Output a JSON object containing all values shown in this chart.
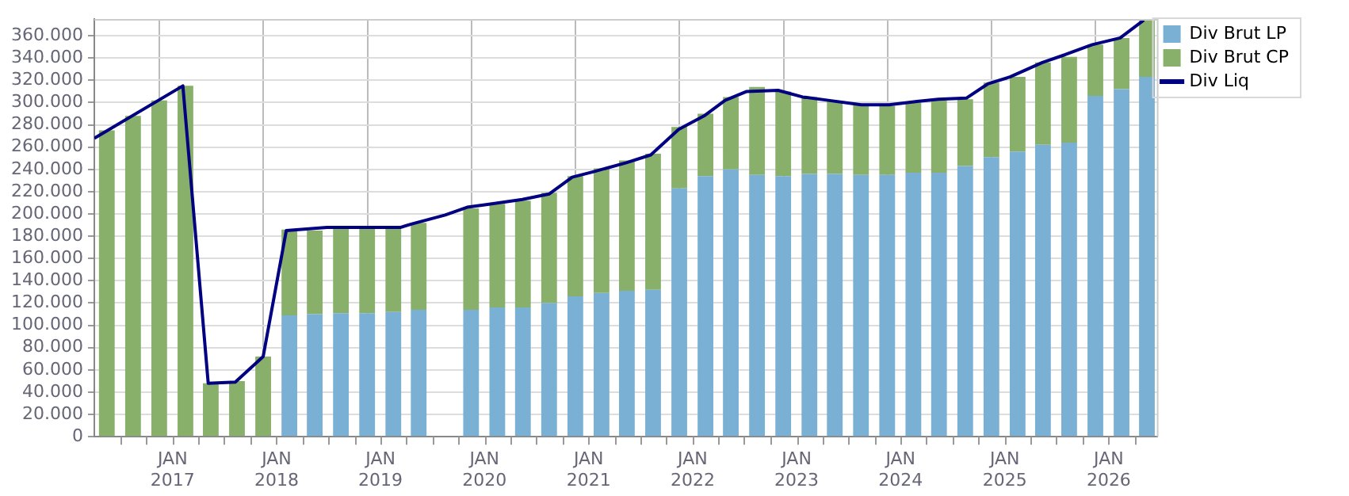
{
  "chart_data": {
    "type": "bar",
    "stacked": true,
    "grid": true,
    "legend": "right",
    "x": [
      "2016-05-15",
      "2016-08-15",
      "2016-11-15",
      "2017-02-15",
      "2017-05-15",
      "2017-08-15",
      "2017-11-15",
      "2018-02-15",
      "2018-05-15",
      "2018-08-15",
      "2018-11-15",
      "2019-02-15",
      "2019-05-15",
      "2019-08-15",
      "2019-11-15",
      "2020-02-15",
      "2020-05-15",
      "2020-08-15",
      "2020-11-15",
      "2021-02-15",
      "2021-05-15",
      "2021-08-15",
      "2021-11-15",
      "2022-02-15",
      "2022-05-15",
      "2022-08-15",
      "2022-11-15",
      "2023-02-15",
      "2023-05-15",
      "2023-08-15",
      "2023-11-15",
      "2024-02-15",
      "2024-05-15",
      "2024-08-15",
      "2024-11-15",
      "2025-02-15",
      "2025-05-15",
      "2025-08-15",
      "2025-11-15",
      "2026-02-15",
      "2026-05-15"
    ],
    "series": [
      {
        "name": "Div Brut LP",
        "color": "#7ab0d3",
        "values": [
          null,
          null,
          null,
          null,
          null,
          null,
          null,
          109000,
          110000,
          111000,
          111000,
          112000,
          114000,
          null,
          114000,
          116000,
          116000,
          120000,
          126000,
          129000,
          131000,
          132000,
          223000,
          234000,
          240000,
          235000,
          234000,
          236000,
          236000,
          235000,
          235000,
          237000,
          237000,
          243000,
          251000,
          256000,
          262000,
          264000,
          306000,
          312000,
          323000
        ]
      },
      {
        "name": "Div Brut CP",
        "color": "#88b06b",
        "values": [
          275000,
          288000,
          302000,
          315000,
          48000,
          50000,
          72000,
          77000,
          75000,
          76000,
          76000,
          75000,
          78000,
          null,
          91000,
          93000,
          96000,
          99000,
          108000,
          112000,
          117000,
          122000,
          55000,
          56000,
          65000,
          79000,
          76000,
          69000,
          65000,
          63000,
          62000,
          63000,
          65000,
          60000,
          67000,
          67000,
          74000,
          77000,
          46000,
          46000,
          51000
        ]
      },
      {
        "name": "Div Liq",
        "type": "line",
        "color": "#000080",
        "x": [
          "2016-04-01",
          "2017-02-06",
          "2017-05-06",
          "2017-08-09",
          "2017-11-15",
          "2018-02-04",
          "2018-06-27",
          "2019-03-13",
          "2019-04-21",
          "2019-08-16",
          "2019-11-01",
          "2019-12-28",
          "2020-05-13",
          "2020-08-16",
          "2020-11-04",
          "2021-01-19",
          "2021-05-13",
          "2021-08-07",
          "2021-11-13",
          "2022-02-10",
          "2022-04-25",
          "2022-07-10",
          "2022-10-28",
          "2023-01-22",
          "2023-04-22",
          "2023-08-16",
          "2023-11-22",
          "2024-02-28",
          "2024-05-13",
          "2024-08-19",
          "2024-11-04",
          "2025-01-19",
          "2025-05-13",
          "2025-08-01",
          "2025-11-04",
          "2026-02-10",
          "2026-05-04"
        ],
        "values": [
          268000,
          315000,
          48000,
          49000,
          72000,
          185000,
          188000,
          188000,
          191000,
          199000,
          206000,
          208000,
          213000,
          218000,
          233000,
          238000,
          246000,
          253000,
          276000,
          288000,
          302000,
          310000,
          311000,
          305000,
          302000,
          298000,
          298000,
          301000,
          303000,
          304000,
          317000,
          323000,
          336000,
          343000,
          352000,
          358000,
          374000
        ]
      }
    ],
    "xlim": [
      "2016-04-01",
      "2026-06-19"
    ],
    "xticks": [
      {
        "value": "2016-07-01",
        "label": null
      },
      {
        "value": "2016-10-01",
        "label": null
      },
      {
        "value": "2017-01-01",
        "label": "JAN 2017"
      },
      {
        "value": "2017-04-01",
        "label": null
      },
      {
        "value": "2017-07-01",
        "label": null
      },
      {
        "value": "2017-10-01",
        "label": null
      },
      {
        "value": "2018-01-01",
        "label": "JAN 2018"
      },
      {
        "value": "2018-04-01",
        "label": null
      },
      {
        "value": "2018-07-01",
        "label": null
      },
      {
        "value": "2018-10-01",
        "label": null
      },
      {
        "value": "2019-01-01",
        "label": "JAN 2019"
      },
      {
        "value": "2019-04-01",
        "label": null
      },
      {
        "value": "2019-07-01",
        "label": null
      },
      {
        "value": "2019-10-01",
        "label": null
      },
      {
        "value": "2020-01-01",
        "label": "JAN 2020"
      },
      {
        "value": "2020-04-01",
        "label": null
      },
      {
        "value": "2020-07-01",
        "label": null
      },
      {
        "value": "2020-10-01",
        "label": null
      },
      {
        "value": "2021-01-01",
        "label": "JAN 2021"
      },
      {
        "value": "2021-04-01",
        "label": null
      },
      {
        "value": "2021-07-01",
        "label": null
      },
      {
        "value": "2021-10-01",
        "label": null
      },
      {
        "value": "2022-01-01",
        "label": "JAN 2022"
      },
      {
        "value": "2022-04-01",
        "label": null
      },
      {
        "value": "2022-07-01",
        "label": null
      },
      {
        "value": "2022-10-01",
        "label": null
      },
      {
        "value": "2023-01-01",
        "label": "JAN 2023"
      },
      {
        "value": "2023-04-01",
        "label": null
      },
      {
        "value": "2023-07-01",
        "label": null
      },
      {
        "value": "2023-10-01",
        "label": null
      },
      {
        "value": "2024-01-01",
        "label": "JAN 2024"
      },
      {
        "value": "2024-04-01",
        "label": null
      },
      {
        "value": "2024-07-01",
        "label": null
      },
      {
        "value": "2024-10-01",
        "label": null
      },
      {
        "value": "2025-01-01",
        "label": "JAN 2025"
      },
      {
        "value": "2025-04-01",
        "label": null
      },
      {
        "value": "2025-07-01",
        "label": null
      },
      {
        "value": "2025-10-01",
        "label": null
      },
      {
        "value": "2026-01-01",
        "label": "JAN 2026"
      },
      {
        "value": "2026-04-01",
        "label": null
      }
    ],
    "ylim": [
      0,
      375000
    ],
    "yticks": [
      {
        "value": 0,
        "label": "0"
      },
      {
        "value": 20000,
        "label": "20.000"
      },
      {
        "value": 40000,
        "label": "40.000"
      },
      {
        "value": 60000,
        "label": "60.000"
      },
      {
        "value": 80000,
        "label": "80.000"
      },
      {
        "value": 100000,
        "label": "100.000"
      },
      {
        "value": 120000,
        "label": "120.000"
      },
      {
        "value": 140000,
        "label": "140.000"
      },
      {
        "value": 160000,
        "label": "160.000"
      },
      {
        "value": 180000,
        "label": "180.000"
      },
      {
        "value": 200000,
        "label": "200.000"
      },
      {
        "value": 220000,
        "label": "220.000"
      },
      {
        "value": 240000,
        "label": "240.000"
      },
      {
        "value": 260000,
        "label": "260.000"
      },
      {
        "value": 280000,
        "label": "280.000"
      },
      {
        "value": 300000,
        "label": "300.000"
      },
      {
        "value": 320000,
        "label": "320.000"
      },
      {
        "value": 340000,
        "label": "340.000"
      },
      {
        "value": 360000,
        "label": "360.000"
      }
    ]
  }
}
